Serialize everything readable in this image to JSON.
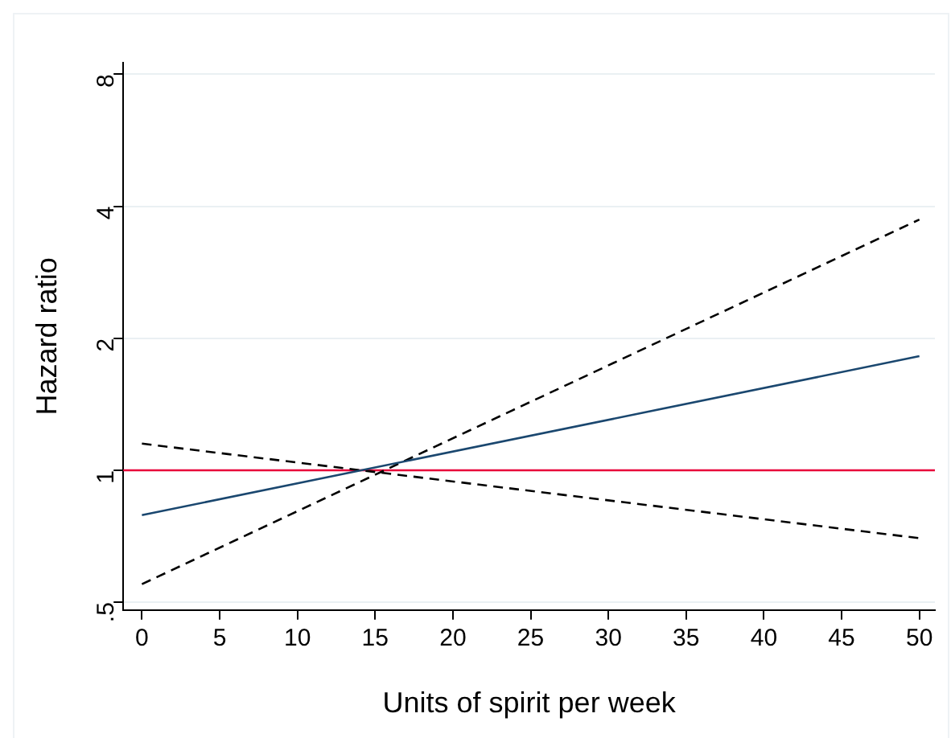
{
  "chart_data": {
    "type": "line",
    "xlabel": "Units of spirit per week",
    "ylabel": "Hazard ratio",
    "x": [
      0,
      50
    ],
    "series": [
      {
        "color": "#1a476f",
        "values": [
          0.79,
          1.82
        ],
        "line_style": "solid"
      },
      {
        "color": "#000000",
        "values": [
          0.55,
          3.73
        ],
        "line_style": "dashed"
      },
      {
        "color": "#000000",
        "values": [
          1.15,
          0.7
        ],
        "line_style": "dashed"
      }
    ],
    "xlim": [
      -1.2,
      51
    ],
    "xticks": [
      0,
      5,
      10,
      15,
      20,
      25,
      30,
      35,
      40,
      45,
      50
    ],
    "ylim": [
      0.48,
      8.5
    ],
    "yticks": [
      {
        "value": 0.5,
        "label": ".5"
      },
      1,
      2,
      4,
      8
    ],
    "log": "y",
    "grid": "y",
    "marker": "none",
    "legend": false,
    "ref_lines": [
      {
        "axis": "y",
        "value": 1,
        "color": "#e8003a"
      }
    ]
  }
}
